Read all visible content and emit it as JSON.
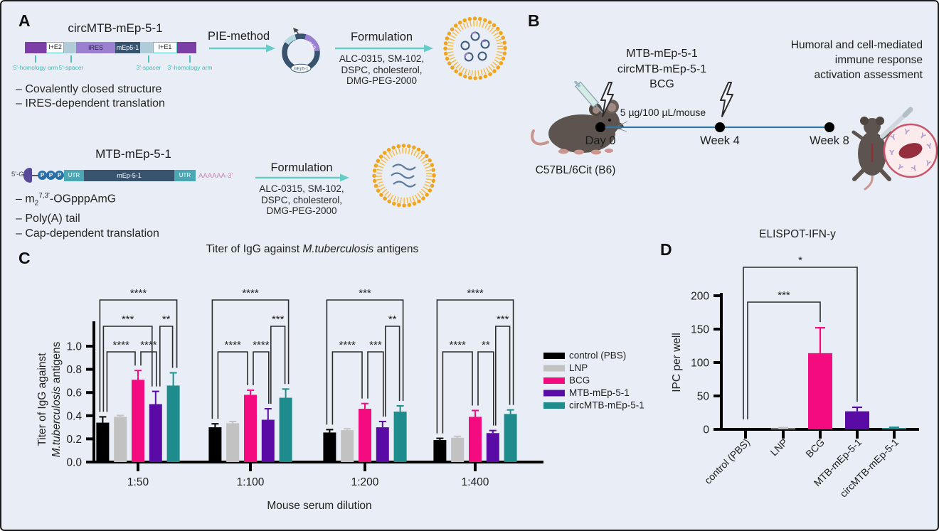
{
  "figure": {
    "panel_a_label": "A",
    "panel_b_label": "B",
    "panel_c_label": "C",
    "panel_d_label": "D"
  },
  "colors": {
    "accent_teal": "#5bc4be",
    "bar_black": "#000000",
    "bar_gray": "#c2c2c2",
    "bar_pink": "#f50b80",
    "bar_purple": "#5a0ba5",
    "bar_teal": "#1e8c8d",
    "timeline_blue": "#2e7ca6",
    "lnp_orange": "#f0a51e"
  },
  "panel_a": {
    "circ_construct": {
      "title": "circMTB-mEp-5-1",
      "seg_ie2": "I+E2",
      "seg_ires": "IRES",
      "seg_gene": "mEp5-1",
      "seg_ie1": "I+E1",
      "callouts": [
        "5'-homology arm",
        "5'-spacer",
        "3'-spacer",
        "3'-homology arm"
      ],
      "bullets": [
        "– Covalently closed structure",
        "– IRES-dependent translation"
      ],
      "process_label": "PIE-method",
      "plasmid_ires_label": "IRES",
      "plasmid_gene_label": "mEp5-1"
    },
    "formulation_label": "Formulation",
    "formulation_lines": [
      "ALC-0315, SM-102,",
      "DSPC, cholesterol,",
      "DMG-PEG-2000"
    ],
    "mrna_construct": {
      "title": "MTB-mEp-5-1",
      "five_prime": "5'-G",
      "p_letter": "P",
      "utr_label": "UTR",
      "gene_label": "mEp-5-1",
      "poly_a": "AAAAAA-3'",
      "bullet_cap": {
        "pre": "– m",
        "sub": "2",
        "sup": "7,3'",
        "post": "-OGpppAmG"
      },
      "bullet_polya": "– Poly(A) tail",
      "bullet_translation": "– Cap-dependent translation"
    }
  },
  "panel_b": {
    "label_agents": [
      "MTB-mEp-5-1",
      "circMTB-mEp-5-1",
      "BCG"
    ],
    "dose": "5 µg/100 µL/mouse",
    "timepoints": [
      "Day 0",
      "Week 4",
      "Week 8"
    ],
    "assessment_lines": [
      "Humoral and cell-mediated",
      "immune response",
      "activation assessment"
    ],
    "mouse_strain": "C57BL/6Cit (B6)"
  },
  "chart_data": [
    {
      "type": "bar",
      "panel": "C",
      "title": "Titer of IgG against M.tuberculosis antigens",
      "title_italic": "M.tuberculosis",
      "ylabel_lines": [
        "Titer of IgG against",
        "M.tuberculosis antigens"
      ],
      "ylabel_italic": "M.tuberculosis",
      "xlabel": "Mouse serum dilution",
      "categories": [
        "1:50",
        "1:100",
        "1:200",
        "1:400"
      ],
      "ylim": [
        0,
        1.0
      ],
      "yticks": [
        "0.0",
        "0.2",
        "0.4",
        "0.6",
        "0.8",
        "1.0"
      ],
      "legend_position": "right",
      "series": [
        {
          "name": "control (PBS)",
          "color": "#000000",
          "values": [
            0.34,
            0.3,
            0.255,
            0.19
          ],
          "errors": [
            0.05,
            0.03,
            0.025,
            0.015
          ]
        },
        {
          "name": "LNP",
          "color": "#c2c2c2",
          "values": [
            0.39,
            0.335,
            0.275,
            0.21
          ],
          "errors": [
            0.012,
            0.015,
            0.012,
            0.012
          ]
        },
        {
          "name": "BCG",
          "color": "#f50b80",
          "values": [
            0.71,
            0.58,
            0.46,
            0.39
          ],
          "errors": [
            0.08,
            0.04,
            0.045,
            0.055
          ]
        },
        {
          "name": "MTB-mEp-5-1",
          "color": "#5a0ba5",
          "values": [
            0.5,
            0.365,
            0.3,
            0.25
          ],
          "errors": [
            0.11,
            0.095,
            0.05,
            0.022
          ]
        },
        {
          "name": "circMTB-mEp-5-1",
          "color": "#1e8c8d",
          "values": [
            0.66,
            0.555,
            0.435,
            0.415
          ],
          "errors": [
            0.11,
            0.075,
            0.05,
            0.035
          ]
        }
      ],
      "significance": [
        [
          {
            "from": 0,
            "to": 4,
            "label": "****",
            "level": 0,
            "offs": [
              -4,
              5
            ]
          },
          {
            "from": 0,
            "to": 3,
            "label": "***",
            "level": 1,
            "offs": [
              1,
              -5
            ]
          },
          {
            "from": 3,
            "to": 4,
            "label": "**",
            "level": 1,
            "offs": [
              6,
              -1
            ]
          },
          {
            "from": 0,
            "to": 2,
            "label": "****",
            "level": 2,
            "offs": [
              6,
              -4
            ]
          },
          {
            "from": 2,
            "to": 3,
            "label": "****",
            "level": 2,
            "offs": [
              4,
              1
            ]
          }
        ],
        [
          {
            "from": 0,
            "to": 4,
            "label": "****",
            "level": 0,
            "offs": [
              -4,
              4
            ]
          },
          {
            "from": 3,
            "to": 4,
            "label": "***",
            "level": 1,
            "offs": [
              4,
              -1
            ]
          },
          {
            "from": 0,
            "to": 2,
            "label": "****",
            "level": 2,
            "offs": [
              4,
              -4
            ]
          },
          {
            "from": 2,
            "to": 3,
            "label": "****",
            "level": 2,
            "offs": [
              4,
              1
            ]
          }
        ],
        [
          {
            "from": 0,
            "to": 4,
            "label": "***",
            "level": 0,
            "offs": [
              -4,
              4
            ]
          },
          {
            "from": 3,
            "to": 4,
            "label": "**",
            "level": 1,
            "offs": [
              4,
              -1
            ]
          },
          {
            "from": 0,
            "to": 2,
            "label": "****",
            "level": 2,
            "offs": [
              4,
              -4
            ]
          },
          {
            "from": 2,
            "to": 3,
            "label": "***",
            "level": 2,
            "offs": [
              4,
              1
            ]
          }
        ],
        [
          {
            "from": 0,
            "to": 4,
            "label": "****",
            "level": 0,
            "offs": [
              -4,
              4
            ]
          },
          {
            "from": 3,
            "to": 4,
            "label": "***",
            "level": 1,
            "offs": [
              4,
              -1
            ]
          },
          {
            "from": 0,
            "to": 2,
            "label": "****",
            "level": 2,
            "offs": [
              4,
              -4
            ]
          },
          {
            "from": 2,
            "to": 3,
            "label": "**",
            "level": 2,
            "offs": [
              4,
              1
            ]
          }
        ]
      ]
    },
    {
      "type": "bar",
      "panel": "D",
      "title": "ELISPOT-IFN-y",
      "ylabel": "IPC per well",
      "categories": [
        "control (PBS)",
        "LNP",
        "BCG",
        "MTB-mEp-5-1",
        "circMTB-mEp-5-1"
      ],
      "values": [
        0,
        1.5,
        114,
        27,
        2
      ],
      "errors": [
        0,
        1,
        38,
        6,
        1
      ],
      "colors": [
        "#000000",
        "#c2c2c2",
        "#f50b80",
        "#5a0ba5",
        "#1e8c8d"
      ],
      "ylim": [
        0,
        200
      ],
      "yticks": [
        0,
        50,
        100,
        150,
        200
      ],
      "significance": [
        {
          "from": 0,
          "to": 2,
          "label": "***",
          "level": 1,
          "offs": [
            3,
            0
          ]
        },
        {
          "from": 0,
          "to": 3,
          "label": "*",
          "level": 0,
          "offs": [
            -3,
            0
          ]
        }
      ]
    }
  ]
}
